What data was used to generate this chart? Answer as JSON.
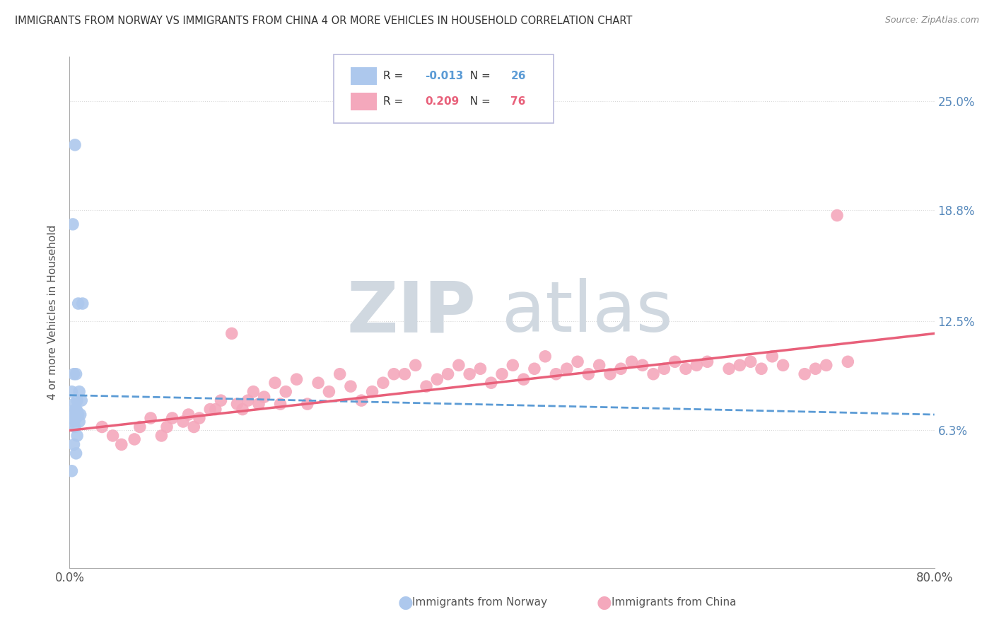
{
  "title": "IMMIGRANTS FROM NORWAY VS IMMIGRANTS FROM CHINA 4 OR MORE VEHICLES IN HOUSEHOLD CORRELATION CHART",
  "source": "Source: ZipAtlas.com",
  "ylabel": "4 or more Vehicles in Household",
  "ytick_labels": [
    "6.3%",
    "12.5%",
    "18.8%",
    "25.0%"
  ],
  "ytick_values": [
    0.063,
    0.125,
    0.188,
    0.25
  ],
  "xlim": [
    0.0,
    0.8
  ],
  "ylim": [
    -0.015,
    0.275
  ],
  "norway_color": "#adc8ed",
  "china_color": "#f4a8bc",
  "norway_line_color": "#5b9bd5",
  "china_line_color": "#e8607a",
  "norway_label": "Immigrants from Norway",
  "china_label": "Immigrants from China",
  "norway_R": -0.013,
  "norway_N": 26,
  "china_R": 0.209,
  "china_N": 76,
  "watermark_zip": "ZIP",
  "watermark_atlas": "atlas",
  "background_color": "#ffffff",
  "grid_color": "#d8d8d8",
  "norway_x": [
    0.005,
    0.003,
    0.008,
    0.012,
    0.004,
    0.006,
    0.002,
    0.009,
    0.007,
    0.011,
    0.004,
    0.006,
    0.003,
    0.007,
    0.005,
    0.008,
    0.01,
    0.004,
    0.006,
    0.003,
    0.009,
    0.005,
    0.007,
    0.004,
    0.006,
    0.002
  ],
  "norway_y": [
    0.225,
    0.18,
    0.135,
    0.135,
    0.095,
    0.095,
    0.085,
    0.085,
    0.08,
    0.08,
    0.078,
    0.075,
    0.074,
    0.074,
    0.072,
    0.072,
    0.072,
    0.07,
    0.07,
    0.068,
    0.068,
    0.065,
    0.06,
    0.055,
    0.05,
    0.04
  ],
  "china_x": [
    0.03,
    0.04,
    0.048,
    0.06,
    0.065,
    0.075,
    0.085,
    0.09,
    0.095,
    0.105,
    0.11,
    0.115,
    0.12,
    0.13,
    0.135,
    0.14,
    0.15,
    0.155,
    0.16,
    0.165,
    0.17,
    0.175,
    0.18,
    0.19,
    0.195,
    0.2,
    0.21,
    0.22,
    0.23,
    0.24,
    0.25,
    0.26,
    0.27,
    0.28,
    0.29,
    0.3,
    0.31,
    0.32,
    0.33,
    0.34,
    0.35,
    0.36,
    0.37,
    0.38,
    0.39,
    0.4,
    0.41,
    0.42,
    0.43,
    0.44,
    0.45,
    0.46,
    0.47,
    0.48,
    0.49,
    0.5,
    0.51,
    0.52,
    0.53,
    0.54,
    0.55,
    0.56,
    0.57,
    0.58,
    0.59,
    0.61,
    0.62,
    0.63,
    0.64,
    0.65,
    0.66,
    0.68,
    0.69,
    0.7,
    0.71,
    0.72
  ],
  "china_y": [
    0.065,
    0.06,
    0.055,
    0.058,
    0.065,
    0.07,
    0.06,
    0.065,
    0.07,
    0.068,
    0.072,
    0.065,
    0.07,
    0.075,
    0.075,
    0.08,
    0.118,
    0.078,
    0.075,
    0.08,
    0.085,
    0.078,
    0.082,
    0.09,
    0.078,
    0.085,
    0.092,
    0.078,
    0.09,
    0.085,
    0.095,
    0.088,
    0.08,
    0.085,
    0.09,
    0.095,
    0.095,
    0.1,
    0.088,
    0.092,
    0.095,
    0.1,
    0.095,
    0.098,
    0.09,
    0.095,
    0.1,
    0.092,
    0.098,
    0.105,
    0.095,
    0.098,
    0.102,
    0.095,
    0.1,
    0.095,
    0.098,
    0.102,
    0.1,
    0.095,
    0.098,
    0.102,
    0.098,
    0.1,
    0.102,
    0.098,
    0.1,
    0.102,
    0.098,
    0.105,
    0.1,
    0.095,
    0.098,
    0.1,
    0.185,
    0.102
  ],
  "norway_trend_x": [
    0.0,
    0.8
  ],
  "norway_trend_y": [
    0.083,
    0.072
  ],
  "china_trend_x": [
    0.0,
    0.8
  ],
  "china_trend_y": [
    0.063,
    0.118
  ]
}
